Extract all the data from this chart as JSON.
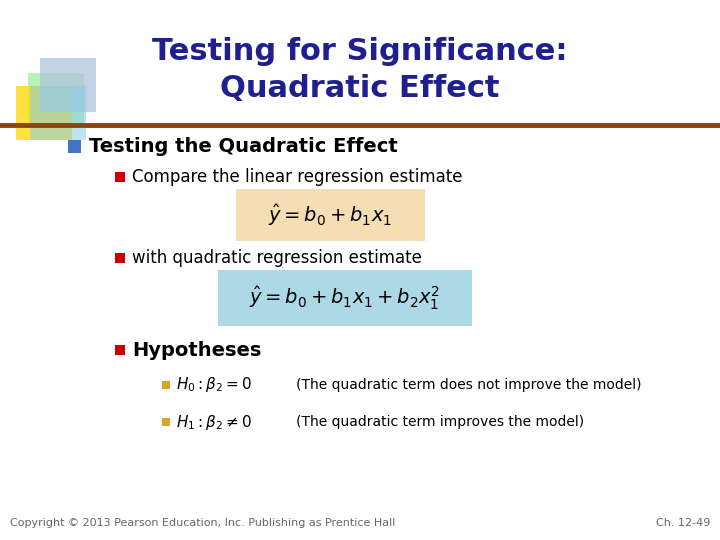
{
  "title_line1": "Testing for Significance:",
  "title_line2": "Quadratic Effect",
  "title_color": "#1F1F8F",
  "title_fontsize": 22,
  "bg_color": "#FFFFFF",
  "separator_color_left": "#8B4513",
  "separator_color_right": "#D2A679",
  "bullet1_text": "Testing the Quadratic Effect",
  "bullet1_square_color": "#4472C4",
  "sub_bullet_color": "#CC0000",
  "sub_bullet2_color": "#CC0000",
  "sub_bullet3_color": "#CC0000",
  "gold_bullet_color": "#DAA520",
  "sub1_text": "Compare the linear regression estimate",
  "sub2_text": "with quadratic regression estimate",
  "sub3_text": "Hypotheses",
  "formula1_bg": "#F5DEB3",
  "formula2_bg": "#ADD8E6",
  "footer_left": "Copyright © 2013 Pearson Education, Inc. Publishing as Prentice Hall",
  "footer_right": "Ch. 12-49",
  "footer_color": "#666666",
  "footer_fontsize": 8,
  "logo_colors": [
    "#B0C4DE",
    "#90EE90",
    "#FFD700",
    "#87CEEB"
  ]
}
